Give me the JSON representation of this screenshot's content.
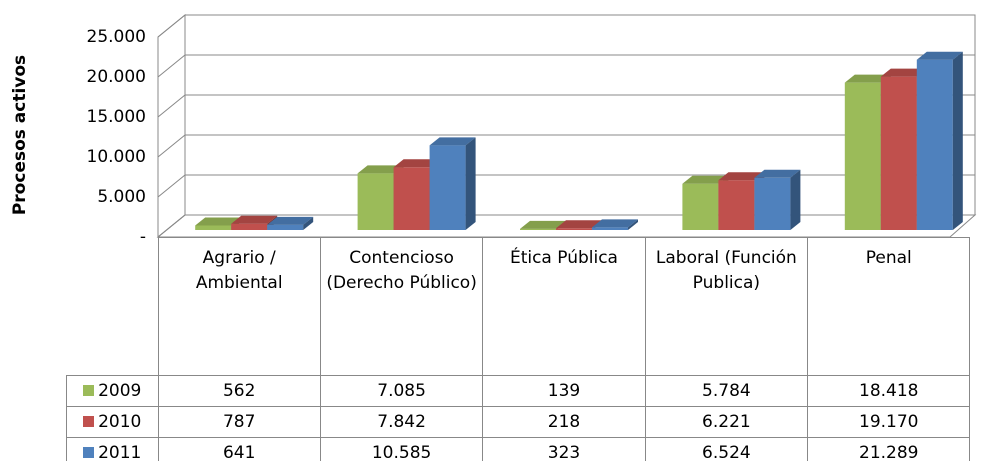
{
  "chart_data": {
    "type": "bar",
    "y_label": "Procesos activos",
    "categories": [
      "Agrario / Ambiental",
      "Contencioso (Derecho Público)",
      "Ética Pública",
      "Laboral (Función Publica)",
      "Penal"
    ],
    "series": [
      {
        "name": "2009",
        "color": "#9bbb59",
        "values": [
          562,
          7085,
          139,
          5784,
          18418
        ],
        "value_labels": [
          "562",
          "7.085",
          "139",
          "5.784",
          "18.418"
        ]
      },
      {
        "name": "2010",
        "color": "#c0504d",
        "values": [
          787,
          7842,
          218,
          6221,
          19170
        ],
        "value_labels": [
          "787",
          "7.842",
          "218",
          "6.221",
          "19.170"
        ]
      },
      {
        "name": "2011",
        "color": "#4f81bd",
        "values": [
          641,
          10585,
          323,
          6524,
          21289
        ],
        "value_labels": [
          "641",
          "10.585",
          "323",
          "6.524",
          "21.289"
        ]
      }
    ],
    "ylim": [
      0,
      25000
    ],
    "yticks": [
      {
        "value": 0,
        "label": "-"
      },
      {
        "value": 5000,
        "label": "5.000"
      },
      {
        "value": 10000,
        "label": "10.000"
      },
      {
        "value": 15000,
        "label": "15.000"
      },
      {
        "value": 20000,
        "label": "20.000"
      },
      {
        "value": 25000,
        "label": "25.000"
      }
    ],
    "grid": true
  }
}
